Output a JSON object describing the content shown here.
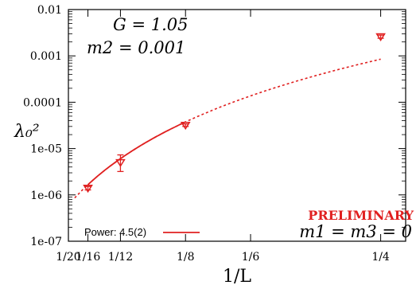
{
  "chart_data": {
    "type": "scatter",
    "title": "",
    "xlabel": "1/L",
    "ylabel": "λ₀²",
    "x_scale": "reciprocal",
    "y_scale": "log",
    "xlim": [
      0.05,
      0.266
    ],
    "ylim": [
      1e-07,
      0.01
    ],
    "x_ticks": [
      {
        "value": 0.05,
        "label": "1/20"
      },
      {
        "value": 0.0625,
        "label": "1/16"
      },
      {
        "value": 0.08333,
        "label": "1/12"
      },
      {
        "value": 0.125,
        "label": "1/8"
      },
      {
        "value": 0.16667,
        "label": "1/6"
      },
      {
        "value": 0.25,
        "label": "1/4"
      }
    ],
    "y_ticks": [
      {
        "value": 1e-07,
        "label": "1e-07"
      },
      {
        "value": 1e-06,
        "label": "1e-06"
      },
      {
        "value": 1e-05,
        "label": "1e-05"
      },
      {
        "value": 0.0001,
        "label": "0.0001"
      },
      {
        "value": 0.001,
        "label": "0.001"
      },
      {
        "value": 0.01,
        "label": "0.01"
      }
    ],
    "grid": false,
    "legend_position": "bottom-left",
    "series": [
      {
        "name": "",
        "marker": "triangle-down",
        "color": "#e02020",
        "points": [
          {
            "x": 0.0625,
            "y": 1.4e-06,
            "err": 1.2e-07
          },
          {
            "x": 0.08333,
            "y": 5e-06,
            "err_up": 2.3e-06,
            "err_down": 1.8e-06
          },
          {
            "x": 0.125,
            "y": 3.2e-05,
            "err": 2e-06
          },
          {
            "x": 0.25,
            "y": 0.0026,
            "err": 0.0002
          }
        ]
      }
    ],
    "fit": {
      "name": "Power: 4.5(2)",
      "exponent": 4.5,
      "color": "#e02020",
      "solid_range": [
        0.0625,
        0.125
      ],
      "dashed_range": [
        0.054,
        0.25
      ],
      "amplitude": 0.0006
    },
    "annotations": {
      "g_line": "G = 1.05",
      "m2_line": "m2 = 0.001",
      "m13_line": "m1 = m3 = 0",
      "preliminary": "PRELIMINARY"
    }
  }
}
